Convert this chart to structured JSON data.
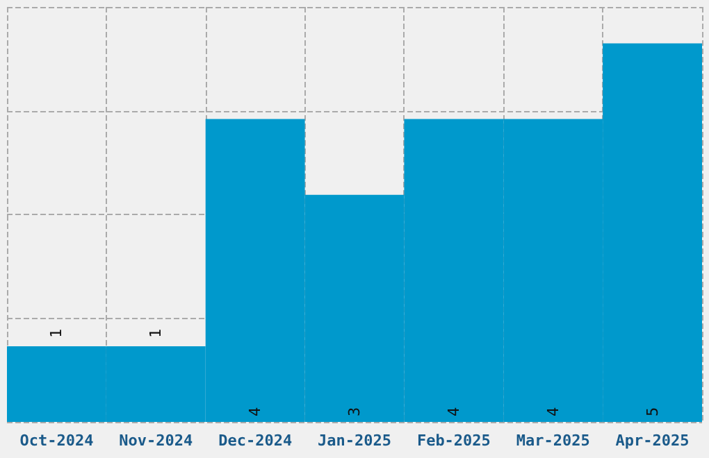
{
  "chart_data": {
    "type": "bar",
    "categories": [
      "Oct-2024",
      "Nov-2024",
      "Dec-2024",
      "Jan-2025",
      "Feb-2025",
      "Mar-2025",
      "Apr-2025"
    ],
    "values": [
      1,
      1,
      4,
      3,
      4,
      4,
      5
    ],
    "color": "#0099cc",
    "ylim": [
      0,
      5.48
    ],
    "yticks": [
      {
        "value": 0,
        "label": null
      },
      {
        "value": 1.37,
        "label": null
      },
      {
        "value": 2.74,
        "label": null
      },
      {
        "value": 4.11,
        "label": null
      },
      {
        "value": 5.48,
        "label": null
      }
    ],
    "tick_labels": "x",
    "grid": true,
    "data_labels": true
  }
}
